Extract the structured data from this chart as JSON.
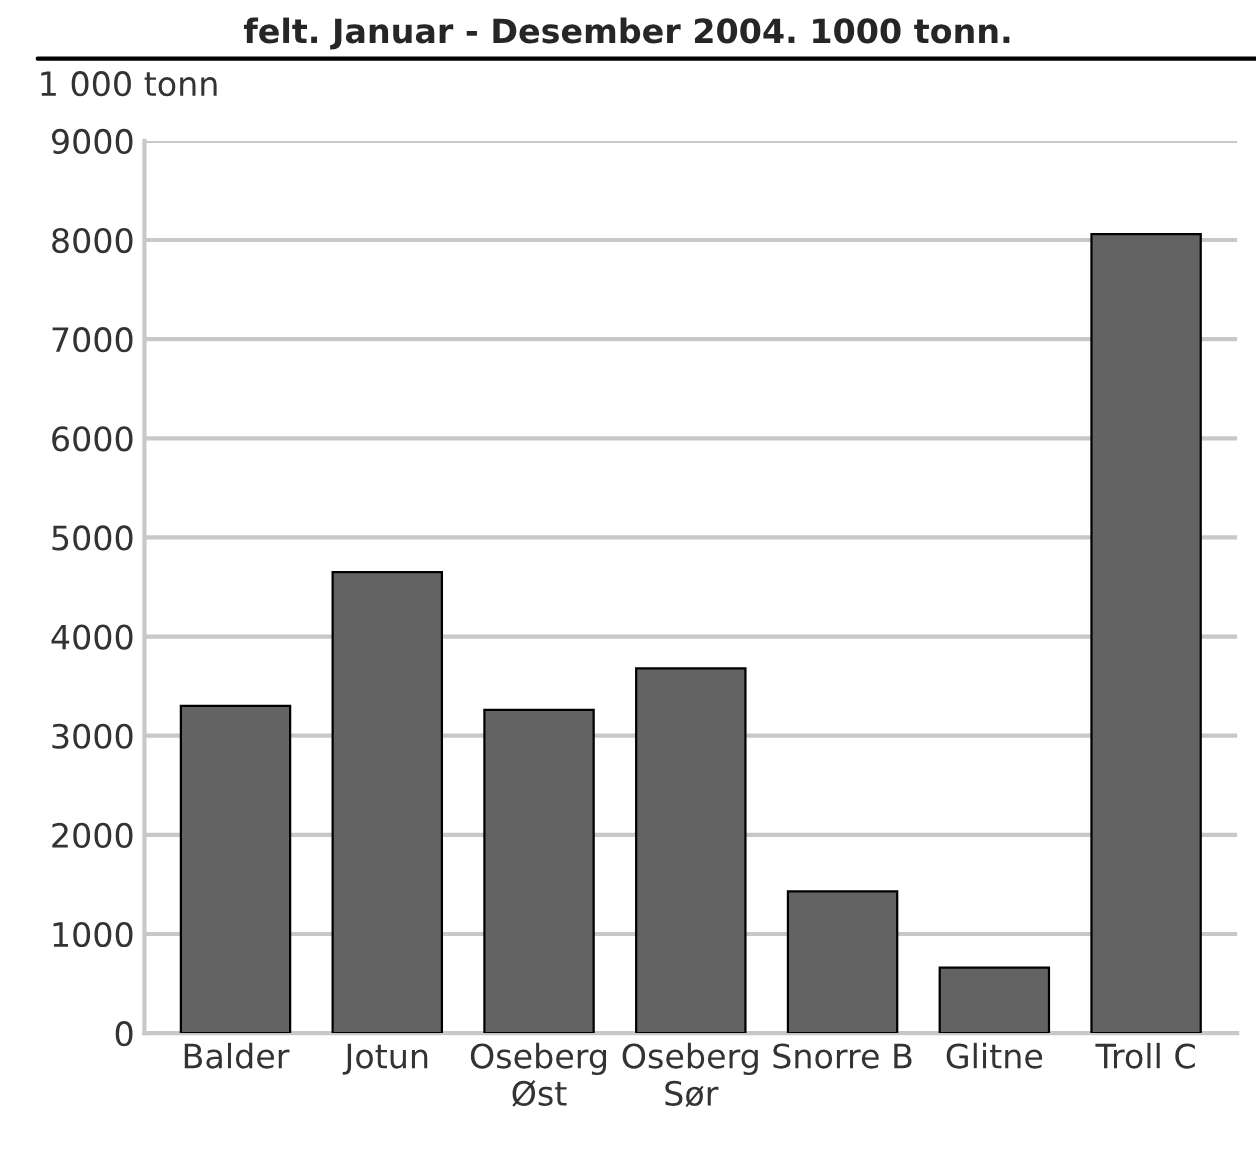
{
  "chart_data": {
    "type": "bar",
    "title": "felt. Januar - Desember 2004. 1000 tonn.",
    "ylabel": "1 000 tonn",
    "categories": [
      "Balder",
      "Jotun",
      "Oseberg\nØst",
      "Oseberg\nSør",
      "Snorre B",
      "Glitne",
      "Troll C"
    ],
    "values": [
      3300,
      4650,
      3260,
      3680,
      1430,
      660,
      8060
    ],
    "color": "#636363",
    "ylim": [
      0,
      9000
    ],
    "yticks": [
      0,
      1000,
      2000,
      3000,
      4000,
      5000,
      6000,
      7000,
      8000,
      9000
    ],
    "grid": "y"
  }
}
